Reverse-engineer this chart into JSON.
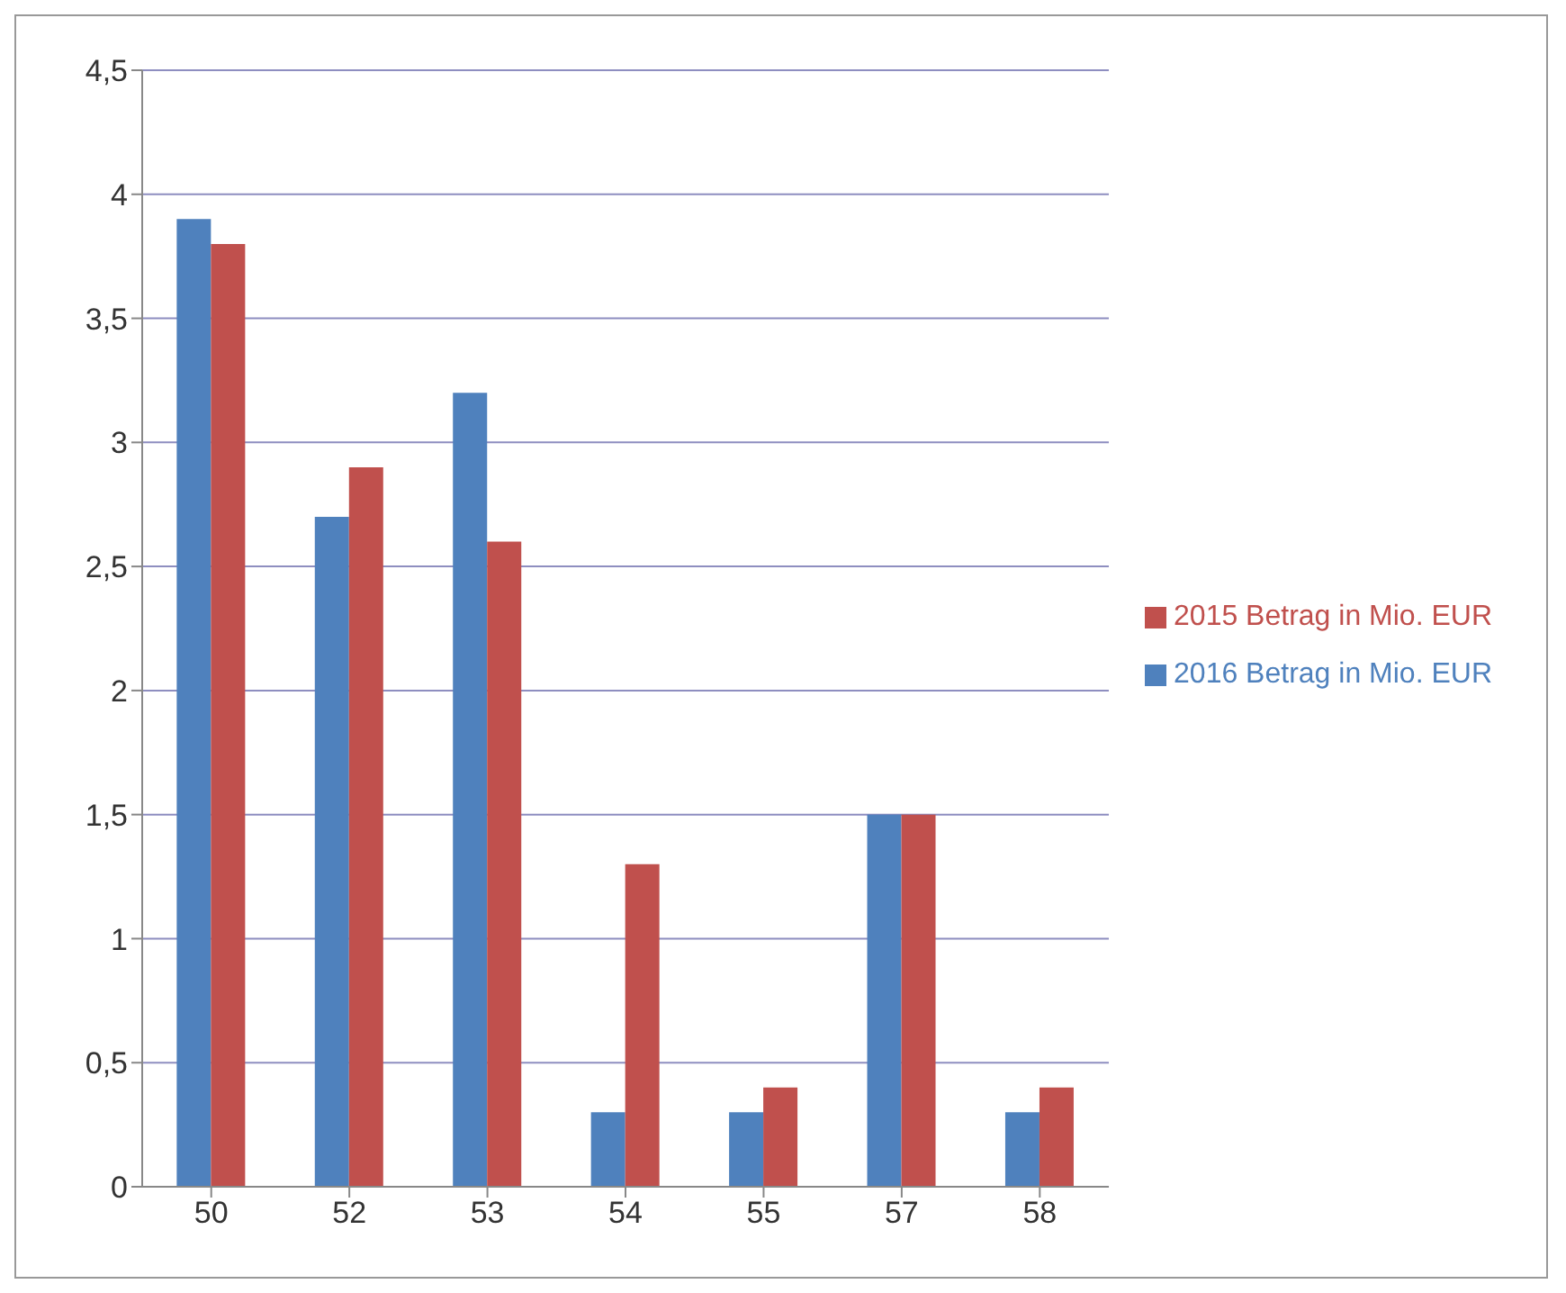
{
  "chart_data": {
    "type": "bar",
    "categories": [
      "50",
      "52",
      "53",
      "54",
      "55",
      "57",
      "58"
    ],
    "series": [
      {
        "name": "2016 Betrag in Mio. EUR",
        "color": "#4f81bd",
        "values": [
          3.9,
          2.7,
          3.2,
          0.3,
          0.3,
          1.5,
          0.3
        ]
      },
      {
        "name": "2015 Betrag in Mio. EUR",
        "color": "#c0504d",
        "values": [
          3.8,
          2.9,
          2.6,
          1.3,
          0.4,
          1.5,
          0.4
        ]
      }
    ],
    "ylim": [
      0,
      4.5
    ],
    "yticks": [
      0,
      {
        "value": 0.5,
        "label": "0,5"
      },
      1,
      {
        "value": 1.5,
        "label": "1,5"
      },
      2,
      {
        "value": 2.5,
        "label": "2,5"
      },
      3,
      {
        "value": 3.5,
        "label": "3,5"
      },
      4,
      {
        "value": 4.5,
        "label": "4,5"
      }
    ],
    "grid": "y",
    "legend": "right"
  }
}
